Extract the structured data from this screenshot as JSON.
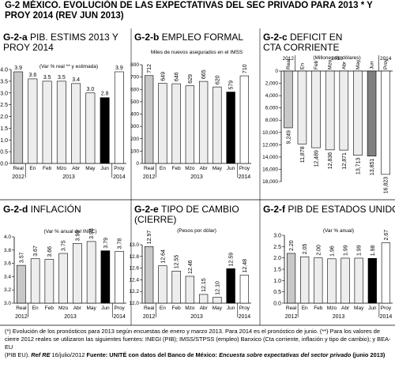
{
  "title": {
    "code": "G-2",
    "text": "MÉXICO. EVOLUCIÓN DE LAS EXPECTATIVAS DEL SEC PRIVADO PARA 2013 * Y PROY 2014  (REV JUN 2013)"
  },
  "chart_data": [
    {
      "id": "a",
      "type": "bar",
      "code": "G-2-a",
      "title": "PIB. ESTIMS 2013 Y PROY 2014",
      "subtitle": "(Var % real ** y estimada)",
      "categories": [
        "Real",
        "En",
        "Feb",
        "Mzo",
        "Abr",
        "May",
        "Jun",
        "Proy"
      ],
      "values": [
        3.9,
        3.6,
        3.5,
        3.5,
        3.4,
        3.0,
        2.8,
        3.9
      ],
      "value_labels": [
        "3.9",
        "3.6",
        "3.5",
        "3.5",
        "3.4",
        "3.0",
        "2.8",
        "3.9"
      ],
      "ylim": [
        0,
        4.0
      ],
      "yticks": [
        "0.0",
        "0.5",
        "1.0",
        "1.5",
        "2.0",
        "2.5",
        "3.0",
        "3.5",
        "4.0"
      ],
      "inverted": false,
      "label_rotated": false,
      "tick_labels_rotated": false,
      "colors": [
        "#c8c8c8",
        "#ededed",
        "#ededed",
        "#ededed",
        "#ededed",
        "#ededed",
        "#000000",
        "#ffffff"
      ],
      "year_labels": [
        "2012",
        "2013",
        "2014"
      ]
    },
    {
      "id": "b",
      "type": "bar",
      "code": "G-2-b",
      "title": "EMPLEO FORMAL",
      "subtitle": "Miles de nuevos asegurados en el IMSS",
      "categories": [
        "Real",
        "En",
        "Feb",
        "Mzo",
        "Abr",
        "May",
        "Jun",
        "Proy"
      ],
      "values": [
        712,
        649,
        646,
        629,
        665,
        620,
        579,
        710
      ],
      "value_labels": [
        "712",
        "649",
        "646",
        "629",
        "665",
        "620",
        "579",
        "710"
      ],
      "ylim": [
        0,
        800
      ],
      "yticks": [
        "0",
        "100",
        "200",
        "300",
        "400",
        "500",
        "600",
        "700",
        "800"
      ],
      "inverted": false,
      "label_rotated": true,
      "tick_labels_rotated": true,
      "colors": [
        "#c8c8c8",
        "#ededed",
        "#ededed",
        "#ededed",
        "#ededed",
        "#ededed",
        "#000000",
        "#ffffff"
      ],
      "year_labels": [
        "2012",
        "2013",
        "2014"
      ]
    },
    {
      "id": "c",
      "type": "bar",
      "code": "G-2-c",
      "title": "DEFICIT EN CTA CORRIENTE",
      "subtitle": "(Millones de dólares)",
      "categories": [
        "Real",
        "En",
        "Feb",
        "Mzo",
        "Abr",
        "May",
        "Jun",
        "Proy"
      ],
      "values": [
        9249,
        11878,
        12489,
        12836,
        12871,
        13713,
        13851,
        16823
      ],
      "value_labels": [
        "9,249",
        "11,878",
        "12,489",
        "12,836",
        "12,871",
        "13,713",
        "13,851",
        "16,823"
      ],
      "ylim": [
        0,
        18000
      ],
      "yticks": [
        "0",
        "2,000",
        "4,000",
        "6,000",
        "8,000",
        "10,000",
        "12,000",
        "14,000",
        "16,000",
        "18,000"
      ],
      "inverted": true,
      "label_rotated": true,
      "tick_labels_rotated": true,
      "colors": [
        "#c8c8c8",
        "#ededed",
        "#ededed",
        "#ededed",
        "#ededed",
        "#ededed",
        "#808080",
        "#ffffff"
      ],
      "year_labels": [
        "2012",
        "2013",
        "2014"
      ]
    },
    {
      "id": "d",
      "type": "bar",
      "code": "G-2-d",
      "title": "INFLACIÓN",
      "subtitle": "(Var % anual del INPC)",
      "categories": [
        "Real",
        "En",
        "Feb",
        "Mzo",
        "Abr",
        "May",
        "Jun",
        "Proy"
      ],
      "values": [
        3.57,
        3.67,
        3.66,
        3.75,
        3.9,
        3.93,
        3.79,
        3.78
      ],
      "value_labels": [
        "3.57",
        "3.67",
        "3.66",
        "3.75",
        "3.90",
        "3.93",
        "3.79",
        "3.78"
      ],
      "ylim": [
        3.0,
        4.0
      ],
      "yticks": [
        "3.0",
        "3.2",
        "3.4",
        "3.6",
        "3.8",
        "4.0"
      ],
      "inverted": false,
      "label_rotated": true,
      "tick_labels_rotated": true,
      "colors": [
        "#c8c8c8",
        "#ededed",
        "#ededed",
        "#ededed",
        "#ededed",
        "#ededed",
        "#000000",
        "#ffffff"
      ],
      "year_labels": [
        "2012",
        "2013",
        "2014"
      ]
    },
    {
      "id": "e",
      "type": "bar",
      "code": "G-2-e",
      "title": "TIPO DE CAMBIO (CIERRE)",
      "subtitle": "(Pesos por dólar)",
      "categories": [
        "Real",
        "En",
        "Feb",
        "Mzo",
        "Abr",
        "May",
        "Jun",
        "Proy"
      ],
      "values": [
        12.97,
        12.64,
        12.55,
        12.46,
        12.15,
        12.1,
        12.59,
        12.48
      ],
      "value_labels": [
        "12.97",
        "12.64",
        "12.55",
        "12.46",
        "12.15",
        "12.10",
        "12.59",
        "12.48"
      ],
      "ylim": [
        12.0,
        13.0
      ],
      "yticks": [
        "12.0",
        "12.2",
        "12.4",
        "12.6",
        "12.8",
        "13.0"
      ],
      "inverted": false,
      "label_rotated": true,
      "tick_labels_rotated": true,
      "colors": [
        "#c8c8c8",
        "#ededed",
        "#ededed",
        "#ededed",
        "#ededed",
        "#ededed",
        "#000000",
        "#ffffff"
      ],
      "year_labels": [
        "2012",
        "2013",
        "2014"
      ]
    },
    {
      "id": "f",
      "type": "bar",
      "code": "G-2-f",
      "title": "PIB DE ESTADOS UNIDOS",
      "subtitle": "(Var % anual)",
      "categories": [
        "Real",
        "En",
        "Feb",
        "Mzo",
        "Abr",
        "May",
        "Jun",
        "Proy"
      ],
      "values": [
        2.2,
        2.05,
        2.0,
        1.96,
        1.99,
        1.99,
        1.98,
        2.67
      ],
      "value_labels": [
        "2.20",
        "2.05",
        "2.00",
        "1.96",
        "1.99",
        "1.99",
        "1.98",
        "2.67"
      ],
      "ylim": [
        0,
        3.0
      ],
      "yticks": [
        "0.0",
        "0.5",
        "1.0",
        "1.5",
        "2.0",
        "2.5",
        "3.0"
      ],
      "inverted": false,
      "label_rotated": true,
      "tick_labels_rotated": false,
      "colors": [
        "#c8c8c8",
        "#ededed",
        "#ededed",
        "#ededed",
        "#ededed",
        "#ededed",
        "#000000",
        "#ffffff"
      ],
      "year_labels": [
        "2012",
        "2013",
        "2014"
      ]
    }
  ],
  "footnote": {
    "line1": "(*) Evolución de los pronósticos para 2013 según encuestas de enero y marzo 2013. Para 2014 es el pronóstico de junio.  (**) Para los valores de",
    "line2": "cierre 2012 reales se utilizaron las siguientes fuentes: INEGI (PIB); IMSS/STPSS (empleo) Banxico (Cta corriente, inflación y tipo de cambio); y BEA-EU",
    "line3_a": "(PIB EU).  ",
    "line3_ref": "Ref RE",
    "line3_date": "  16/julio/2012   ",
    "line3_fuente": "Fuente:",
    "line3_src": " UNITÉ con datos del Banco de México: ",
    "line3_survey": "Encuesta sobre expectativas del sector privado",
    "line3_end": " (junio 2013)"
  }
}
